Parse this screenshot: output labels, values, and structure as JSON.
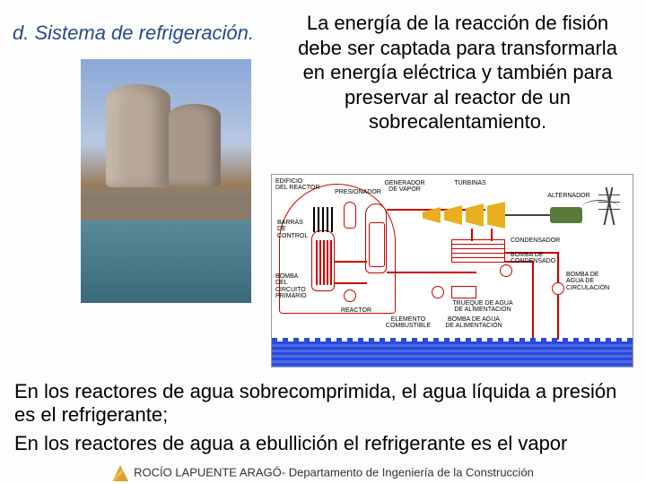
{
  "heading": "d. Sistema de refrigeración.",
  "header_paragraph": "La energía de la reacción de fisión debe ser captada para transformarla en energía eléctrica y también para preservar al reactor de un sobrecalentamiento.",
  "diagram_labels": {
    "edificio": "EDIFICIO\nDEL REACTOR",
    "barras": "BARRAS\nDE CONTROL",
    "presionador": "PRESIONADOR",
    "generador": "GENERADOR\nDE VAPOR",
    "tuberias": "TURBINAS",
    "alternador": "ALTERNADOR",
    "condensador": "CONDENSADOR",
    "bomba_cond": "BOMBA DE\nCONDENSADO",
    "bomba_primario": "BOMBA\nDEL CIRCUITO\nPRIMARIO",
    "reactor": "REACTOR",
    "elemento": "ELEMENTO\nCOMBUSTIBLE",
    "bomba_alim": "BOMBA DE AGUA\nDE ALIMENTACIÓN",
    "bomba_circ": "BOMBA DE\nAGUA DE\nCIRCULACIÓN",
    "trueque": "TRUEQUE DE AGUA\nDE ALIMENTACIÓN"
  },
  "bottom_text_1": "En los reactores de agua sobrecomprimida, el agua líquida a presión es el refrigerante;",
  "bottom_text_2": "En los reactores de agua a ebullición el refrigerante es el vapor",
  "footer": "ROCÍO LAPUENTE ARAGÓ- Departamento de Ingeniería de la Construcción",
  "colors": {
    "heading": "#2a4a8a",
    "pipe": "#c00",
    "water": "#2a4ad8"
  }
}
